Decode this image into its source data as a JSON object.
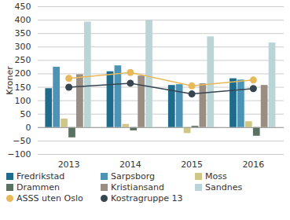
{
  "chart_data": {
    "type": "bar",
    "y_label": "Kroner",
    "categories": [
      "2013",
      "2014",
      "2015",
      "2016"
    ],
    "ylim": [
      -100,
      450
    ],
    "yticks": [
      -100,
      -50,
      0,
      50,
      100,
      150,
      200,
      250,
      300,
      350,
      400,
      450
    ],
    "grid": true,
    "legend": "bottom",
    "series": [
      {
        "name": "Fredrikstad",
        "color": "#1f6b8c",
        "values": [
          145,
          208,
          157,
          182
        ]
      },
      {
        "name": "Sarpsborg",
        "color": "#4d93b5",
        "values": [
          225,
          230,
          160,
          177
        ]
      },
      {
        "name": "Moss",
        "color": "#cfc786",
        "values": [
          32,
          12,
          -22,
          22
        ]
      },
      {
        "name": "Drammen",
        "color": "#5a7261",
        "values": [
          -38,
          -12,
          5,
          -32
        ]
      },
      {
        "name": "Kristiansand",
        "color": "#9a8e84",
        "values": [
          197,
          192,
          163,
          157
        ]
      },
      {
        "name": "Sandnes",
        "color": "#b9d5d6",
        "values": [
          393,
          400,
          338,
          315
        ]
      },
      {
        "name": "ASSS uten Oslo",
        "color": "#e8b95a",
        "type": "line",
        "marker": "circle",
        "values": [
          183,
          205,
          155,
          177
        ]
      },
      {
        "name": "Kostragruppe 13",
        "color": "#36454f",
        "type": "line",
        "marker": "circle",
        "values": [
          150,
          165,
          125,
          145
        ]
      }
    ]
  }
}
